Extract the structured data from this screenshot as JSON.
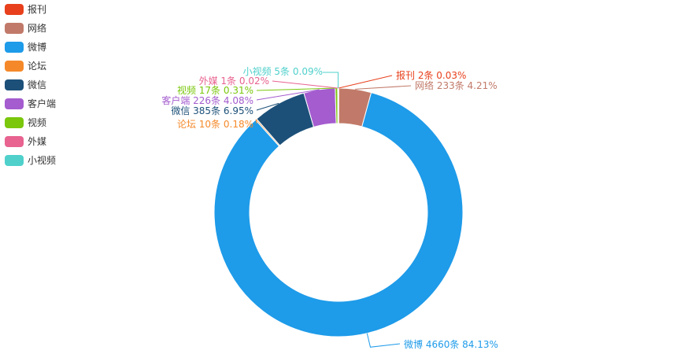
{
  "chart_data": {
    "type": "pie",
    "donut": true,
    "title": "",
    "series": [
      {
        "name": "报刊",
        "value": 2,
        "percent": "0.03%",
        "label": "报刊 2条  0.03%",
        "color": "#e8401c"
      },
      {
        "name": "网络",
        "value": 233,
        "percent": "4.21%",
        "label": "网络 233条  4.21%",
        "color": "#c17a69"
      },
      {
        "name": "微博",
        "value": 4660,
        "percent": "84.13%",
        "label": "微博 4660条  84.13%",
        "color": "#1e9be9"
      },
      {
        "name": "论坛",
        "value": 10,
        "percent": "0.18%",
        "label": "论坛 10条  0.18%",
        "color": "#f5892a"
      },
      {
        "name": "微信",
        "value": 385,
        "percent": "6.95%",
        "label": "微信 385条  6.95%",
        "color": "#1c5079"
      },
      {
        "name": "客户端",
        "value": 226,
        "percent": "4.08%",
        "label": "客户端 226条  4.08%",
        "color": "#a45ccf"
      },
      {
        "name": "视频",
        "value": 17,
        "percent": "0.31%",
        "label": "视频 17条  0.31%",
        "color": "#7ac70c"
      },
      {
        "name": "外媒",
        "value": 1,
        "percent": "0.02%",
        "label": "外媒 1条  0.02%",
        "color": "#e8638f"
      },
      {
        "name": "小视频",
        "value": 5,
        "percent": "0.09%",
        "label": "小视频 5条  0.09%",
        "color": "#4fd0cb"
      }
    ],
    "legend_position": "top-left",
    "start_at": "top",
    "direction": "clockwise"
  }
}
